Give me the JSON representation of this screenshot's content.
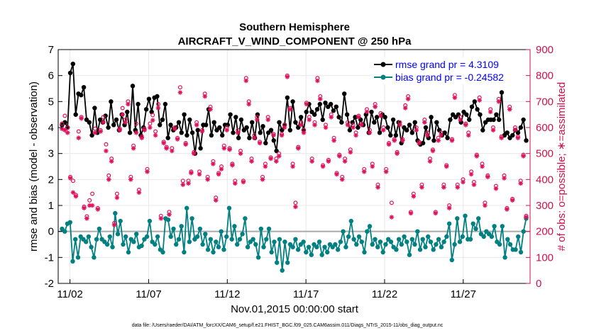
{
  "chart_data": {
    "type": "line",
    "title": "Southern Hemisphere",
    "subtitle": "AIRCRAFT_V_WIND_COMPONENT @ 250 hPa",
    "xlabel": "Nov.01,2015 00:00:00 start",
    "ylabel_left": "rmse and bias (model - observation)",
    "ylabel_right": "# of obs: o=possible; ∗=assimilated",
    "footnote": "data file: /Users/raeder/DAI/ATM_forcXX/CAM6_setup/f.e21.FHIST_BGC.f09_025.CAM6assim.011/Diags_NTrS_2015-11/obs_diag_output.nc",
    "x_ticks": [
      {
        "value": 1.5,
        "label": "11/02"
      },
      {
        "value": 6.5,
        "label": "11/07"
      },
      {
        "value": 11.5,
        "label": "11/12"
      },
      {
        "value": 16.5,
        "label": "11/17"
      },
      {
        "value": 21.5,
        "label": "11/22"
      },
      {
        "value": 26.5,
        "label": "11/27"
      }
    ],
    "xlim": [
      0.75,
      30.75
    ],
    "ylim_left": [
      -2,
      7
    ],
    "ylim_right": [
      0,
      900
    ],
    "y_ticks_left": [
      -2,
      -1,
      0,
      1,
      2,
      3,
      4,
      5,
      6,
      7
    ],
    "y_ticks_right": [
      0,
      100,
      200,
      300,
      400,
      500,
      600,
      700,
      800,
      900
    ],
    "zero_line": 0,
    "grid": true,
    "legend": {
      "position": "top-right",
      "entries": [
        "rmse grand pr = 4.3109",
        "bias grand pr = -0.24582"
      ]
    },
    "series": [
      {
        "name": "rmse",
        "label": "rmse grand pr = 4.3109",
        "color": "#000000",
        "marker": "dot",
        "axis": "left",
        "values": [
          4.1,
          4.2,
          4.0,
          6.1,
          6.45,
          4.5,
          5.3,
          5.25,
          5.55,
          4.3,
          4.2,
          3.7,
          4.75,
          3.8,
          4.3,
          4.2,
          4.45,
          4.0,
          5.0,
          4.1,
          4.3,
          3.9,
          4.5,
          4.1,
          4.6,
          3.8,
          5.6,
          3.9,
          4.9,
          3.7,
          4.0,
          4.7,
          5.1,
          4.6,
          5.15,
          5.2,
          4.1,
          4.3,
          4.9,
          3.6,
          4.1,
          3.9,
          4.0,
          4.2,
          3.8,
          4.5,
          3.7,
          4.3,
          3.8,
          3.0,
          3.9,
          3.2,
          4.1,
          4.1,
          4.7,
          3.7,
          4.2,
          3.9,
          4.0,
          3.7,
          4.1,
          4.1,
          4.5,
          3.8,
          4.4,
          3.6,
          4.3,
          3.9,
          4.0,
          3.6,
          4.2,
          3.6,
          4.5,
          3.8,
          4.05,
          3.4,
          3.8,
          3.9,
          3.5,
          3.1,
          4.2,
          3.9,
          4.1,
          5.15,
          3.9,
          5.0,
          4.2,
          4.0,
          4.4,
          3.9,
          4.6,
          4.9,
          4.6,
          4.5,
          4.7,
          4.9,
          4.3,
          4.95,
          4.8,
          4.9,
          4.65,
          4.8,
          4.4,
          4.2,
          5.3,
          4.5,
          3.9,
          4.2,
          4.4,
          4.0,
          4.3,
          4.1,
          4.5,
          3.8,
          4.6,
          4.2,
          4.4,
          3.8,
          4.5,
          4.4,
          4.0,
          3.7,
          4.3,
          3.7,
          4.2,
          3.4,
          4.0,
          3.9,
          4.1,
          3.8,
          4.2,
          3.5,
          3.35,
          3.4,
          4.0,
          3.6,
          4.4,
          3.5,
          4.2,
          3.9,
          3.7,
          3.8,
          3.6,
          4.3,
          4.5,
          4.4,
          4.5,
          4.2,
          4.6,
          4.5,
          4.3,
          4.8,
          5.0,
          4.7,
          4.5,
          3.9,
          4.2,
          4.3,
          4.3,
          4.3,
          4.5,
          4.3,
          5.35,
          3.7,
          3.8,
          3.6,
          3.7,
          3.9,
          3.8,
          4.0,
          4.3,
          3.5
        ]
      },
      {
        "name": "bias",
        "label": "bias grand pr = -0.24582",
        "color": "#008080",
        "marker": "dot",
        "axis": "left",
        "values": [
          0.1,
          0.0,
          0.3,
          0.35,
          -1.15,
          -0.3,
          -1.0,
          -0.2,
          -0.3,
          -0.4,
          -0.2,
          -0.6,
          -1.0,
          -0.3,
          0.1,
          -0.3,
          -0.4,
          -0.5,
          -0.2,
          -0.6,
          0.7,
          -0.1,
          0.4,
          -0.5,
          -0.2,
          -0.8,
          -0.3,
          -0.4,
          -0.1,
          -0.6,
          -0.55,
          -0.3,
          -0.2,
          0.4,
          -0.4,
          -0.5,
          -0.2,
          -0.7,
          -0.8,
          0.5,
          0.45,
          -0.2,
          0.1,
          -0.5,
          -0.3,
          0.2,
          -0.8,
          0.9,
          -0.4,
          0.5,
          -0.3,
          -0.2,
          0.1,
          -0.5,
          -0.1,
          -0.7,
          -0.3,
          -0.8,
          -0.4,
          -0.6,
          0.0,
          -0.7,
          -0.2,
          0.9,
          -0.3,
          0.2,
          -0.5,
          -0.3,
          -0.1,
          0.5,
          -0.6,
          -0.4,
          -0.3,
          -0.5,
          -1.0,
          0.1,
          -0.6,
          -0.3,
          0.1,
          -0.8,
          -0.4,
          -1.2,
          -0.3,
          -1.5,
          -0.4,
          -1.2,
          -0.5,
          -0.6,
          -0.3,
          -0.7,
          -0.5,
          -0.4,
          -0.8,
          -0.6,
          -0.9,
          -0.5,
          -0.6,
          -0.4,
          -0.9,
          -0.6,
          -0.8,
          -0.5,
          -0.6,
          -0.5,
          -0.7,
          -0.4,
          0.0,
          -0.6,
          -0.2,
          0.4,
          -0.3,
          -0.5,
          -0.2,
          -0.4,
          -0.8,
          0.0,
          0.2,
          -0.5,
          -0.3,
          -0.6,
          -0.4,
          -0.8,
          -0.5,
          -0.3,
          -0.4,
          -0.6,
          -0.7,
          -0.3,
          -0.5,
          -0.2,
          -0.4,
          -0.9,
          -0.3,
          -0.5,
          0.0,
          -0.7,
          -0.3,
          -0.6,
          -0.2,
          -0.4,
          -0.7,
          -0.5,
          -0.3,
          -0.6,
          -0.4,
          -0.2,
          0.3,
          -1.1,
          -0.5,
          0.5,
          -0.4,
          -0.2,
          0.6,
          -0.3,
          -0.3,
          0.3,
          0.1,
          0.5,
          -0.1,
          -0.2,
          0.0,
          -0.1,
          -0.2,
          0.2,
          -0.4,
          -0.5,
          0.2,
          -1.0,
          -0.3,
          -0.5,
          -0.7,
          -0.7,
          -0.2,
          -0.8,
          0.0,
          0.5
        ]
      },
      {
        "name": "obs_possible",
        "label": "o=possible",
        "color": "#e0105a",
        "marker": "circle",
        "axis": "right",
        "values": [
          615,
          645,
          600,
          410,
          395,
          340,
          585,
          640,
          295,
          258,
          320,
          345,
          596,
          290,
          590,
          640,
          535,
          415,
          480,
          232,
          345,
          595,
          675,
          630,
          700,
          410,
          530,
          615,
          360,
          565,
          595,
          440,
          615,
          648,
          585,
          690,
          260,
          545,
          525,
          275,
          520,
          600,
          560,
          755,
          395,
          540,
          395,
          430,
          505,
          620,
          430,
          590,
          730,
          410,
          680,
          470,
          330,
          425,
          450,
          530,
          600,
          520,
          460,
          395,
          590,
          510,
          395,
          790,
          700,
          480,
          570,
          640,
          545,
          410,
          460,
          640,
          485,
          575,
          480,
          500,
          575,
          610,
          800,
          675,
          460,
          310,
          525,
          620,
          590,
          695,
          640,
          480,
          620,
          790,
          720,
          455,
          610,
          475,
          650,
          560,
          425,
          495,
          410,
          480,
          620,
          515,
          610,
          580,
          645,
          615,
          440,
          670,
          590,
          460,
          690,
          380,
          655,
          600,
          440,
          540,
          310,
          555,
          505,
          620,
          555,
          685,
          720,
          275,
          345,
          600,
          545,
          380,
          630,
          580,
          480,
          515,
          275,
          560,
          580,
          380,
          455,
          300,
          555,
          725,
          380,
          640,
          400,
          615,
          580,
          430,
          390,
          495,
          715,
          460,
          310,
          415,
          670,
          600,
          375,
          710,
          565,
          415,
          290,
          680,
          325,
          600,
          565,
          395,
          495,
          260
        ]
      },
      {
        "name": "obs_assimilated",
        "label": "∗=assimilated",
        "color": "#e0105a",
        "marker": "star",
        "axis": "right",
        "values": [
          595,
          590,
          580,
          405,
          350,
          335,
          560,
          635,
          290,
          250,
          300,
          300,
          580,
          285,
          585,
          620,
          510,
          400,
          470,
          225,
          330,
          590,
          650,
          620,
          690,
          400,
          520,
          580,
          350,
          560,
          590,
          430,
          600,
          628,
          570,
          675,
          250,
          540,
          520,
          265,
          510,
          595,
          555,
          735,
          380,
          535,
          385,
          425,
          500,
          610,
          420,
          585,
          720,
          400,
          670,
          460,
          320,
          420,
          440,
          520,
          590,
          515,
          455,
          385,
          580,
          500,
          390,
          780,
          690,
          470,
          560,
          630,
          540,
          400,
          450,
          630,
          480,
          570,
          470,
          490,
          570,
          600,
          795,
          670,
          450,
          295,
          520,
          610,
          580,
          690,
          630,
          470,
          610,
          780,
          710,
          450,
          600,
          470,
          640,
          550,
          420,
          490,
          400,
          470,
          610,
          505,
          600,
          570,
          640,
          610,
          430,
          660,
          580,
          450,
          680,
          370,
          645,
          590,
          430,
          535,
          255,
          550,
          500,
          610,
          550,
          675,
          710,
          270,
          335,
          590,
          540,
          370,
          620,
          570,
          470,
          510,
          270,
          550,
          570,
          370,
          450,
          290,
          550,
          715,
          370,
          630,
          390,
          610,
          570,
          420,
          380,
          490,
          705,
          450,
          300,
          410,
          660,
          590,
          365,
          700,
          560,
          405,
          285,
          670,
          320,
          590,
          560,
          385,
          490,
          255
        ]
      }
    ]
  }
}
